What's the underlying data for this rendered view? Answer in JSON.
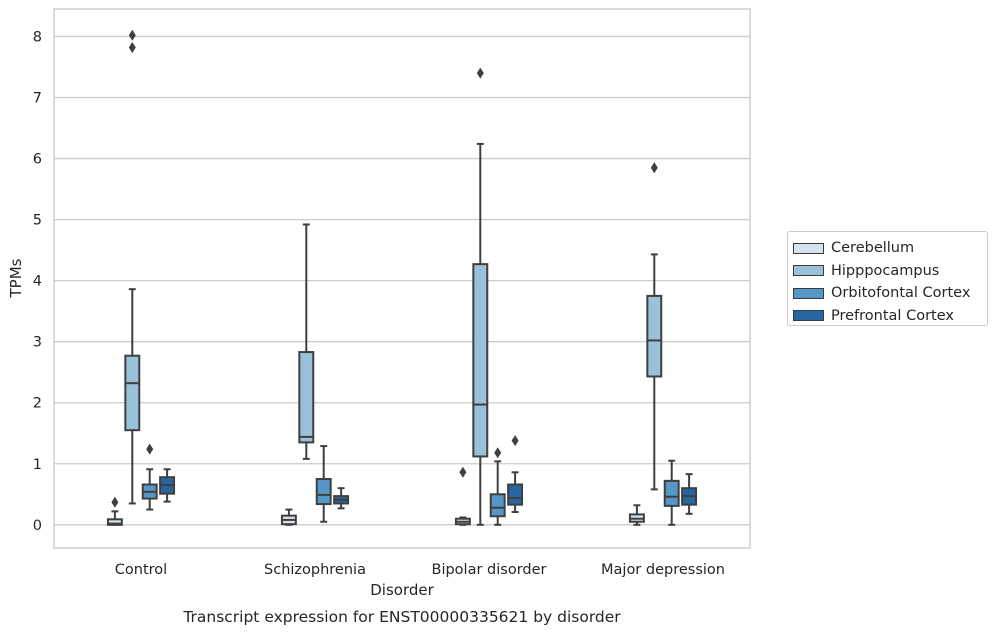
{
  "chart_data": {
    "type": "box",
    "title": "Transcript expression for ENST00000335621 by disorder",
    "xlabel": "Disorder",
    "ylabel": "TPMs",
    "ylim": [
      -0.38,
      8.45
    ],
    "yticks": [
      0,
      1,
      2,
      3,
      4,
      5,
      6,
      7,
      8
    ],
    "grid": "horizontal",
    "legend_position": "right",
    "categories": [
      "Control",
      "Schizophrenia",
      "Bipolar disorder",
      "Major depression"
    ],
    "series": [
      {
        "name": "Cerebellum",
        "color": "#d4e3ef",
        "boxes": [
          {
            "low": 0.0,
            "q1": 0.0,
            "median": 0.02,
            "q3": 0.09,
            "high": 0.22,
            "outliers": [
              0.37
            ]
          },
          {
            "low": 0.0,
            "q1": 0.01,
            "median": 0.08,
            "q3": 0.15,
            "high": 0.25,
            "outliers": []
          },
          {
            "low": 0.0,
            "q1": 0.01,
            "median": 0.05,
            "q3": 0.1,
            "high": 0.12,
            "outliers": [
              0.86
            ]
          },
          {
            "low": 0.0,
            "q1": 0.05,
            "median": 0.1,
            "q3": 0.17,
            "high": 0.32,
            "outliers": []
          }
        ]
      },
      {
        "name": "Hipppocampus",
        "color": "#9ac1da",
        "boxes": [
          {
            "low": 0.35,
            "q1": 1.55,
            "median": 2.32,
            "q3": 2.77,
            "high": 3.86,
            "outliers": [
              7.82,
              8.02
            ]
          },
          {
            "low": 1.08,
            "q1": 1.35,
            "median": 1.44,
            "q3": 2.83,
            "high": 4.92,
            "outliers": []
          },
          {
            "low": 0.0,
            "q1": 1.12,
            "median": 1.97,
            "q3": 4.27,
            "high": 6.24,
            "outliers": [
              7.4
            ]
          },
          {
            "low": 0.58,
            "q1": 2.43,
            "median": 3.02,
            "q3": 3.75,
            "high": 4.43,
            "outliers": [
              5.85
            ]
          }
        ]
      },
      {
        "name": "Orbitofontal Cortex",
        "color": "#5597c6",
        "boxes": [
          {
            "low": 0.25,
            "q1": 0.43,
            "median": 0.54,
            "q3": 0.66,
            "high": 0.91,
            "outliers": [
              1.24
            ]
          },
          {
            "low": 0.05,
            "q1": 0.34,
            "median": 0.49,
            "q3": 0.75,
            "high": 1.29,
            "outliers": []
          },
          {
            "low": 0.0,
            "q1": 0.14,
            "median": 0.28,
            "q3": 0.5,
            "high": 1.04,
            "outliers": [
              1.18
            ]
          },
          {
            "low": 0.0,
            "q1": 0.31,
            "median": 0.46,
            "q3": 0.72,
            "high": 1.05,
            "outliers": []
          }
        ]
      },
      {
        "name": "Prefrontal Cortex",
        "color": "#2866a2",
        "boxes": [
          {
            "low": 0.38,
            "q1": 0.51,
            "median": 0.65,
            "q3": 0.78,
            "high": 0.91,
            "outliers": []
          },
          {
            "low": 0.27,
            "q1": 0.35,
            "median": 0.41,
            "q3": 0.47,
            "high": 0.6,
            "outliers": []
          },
          {
            "low": 0.21,
            "q1": 0.33,
            "median": 0.44,
            "q3": 0.66,
            "high": 0.86,
            "outliers": [
              1.38
            ]
          },
          {
            "low": 0.18,
            "q1": 0.33,
            "median": 0.47,
            "q3": 0.6,
            "high": 0.83,
            "outliers": []
          }
        ]
      }
    ]
  }
}
